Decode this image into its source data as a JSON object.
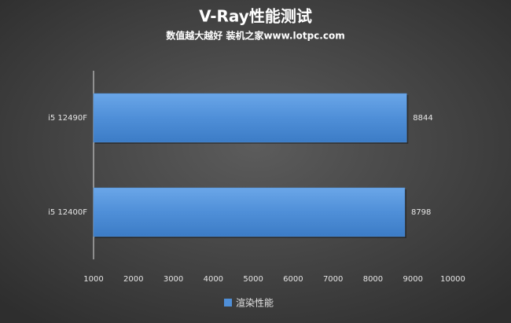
{
  "chart_data": {
    "type": "bar",
    "orientation": "horizontal",
    "title": "V-Ray性能测试",
    "subtitle": "数值越大越好 装机之家www.lotpc.com",
    "categories": [
      "i5 12490F",
      "i5 12400F"
    ],
    "series": [
      {
        "name": "渲染性能",
        "color": "#4f8fd8",
        "values": [
          8844,
          8798
        ]
      }
    ],
    "xlim": [
      1000,
      10000
    ],
    "xticks": [
      1000,
      2000,
      3000,
      4000,
      5000,
      6000,
      7000,
      8000,
      9000,
      10000
    ],
    "grid": false,
    "legend": "bottom"
  }
}
